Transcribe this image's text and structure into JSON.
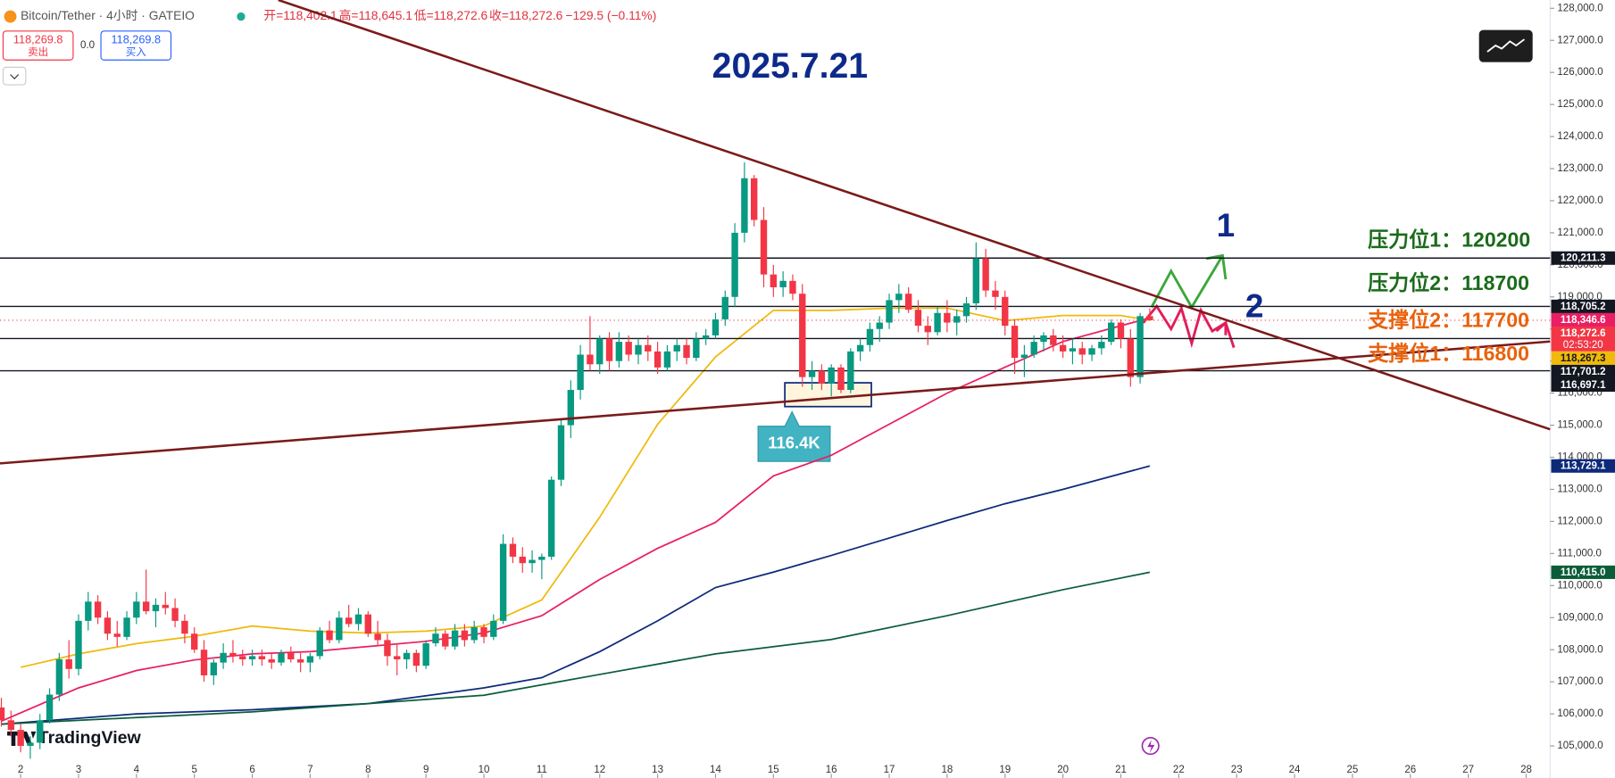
{
  "header": {
    "symbol": "Bitcoin/Tether · 4小时 · GATEIO",
    "open": "开=118,402.1",
    "high": "高=118,645.1",
    "low": "低=118,272.6",
    "close": "收=118,272.6",
    "change": "−129.5 (−0.11%)",
    "sell_price": "118,269.8",
    "sell": "卖出",
    "spread": "0.0",
    "buy_price": "118,269.8",
    "buy": "买入"
  },
  "brand": "TradingView",
  "chart_data": {
    "type": "candlestick",
    "title": "2025.7.21",
    "grid": false,
    "up_color": "#089981",
    "down_color": "#f23645",
    "xlim": [
      -0.14,
      160.48
    ],
    "ylim": [
      104000,
      128258
    ],
    "xticks": [
      {
        "value": 2,
        "label": "2"
      },
      {
        "value": 8,
        "label": "3"
      },
      {
        "value": 14,
        "label": "4"
      },
      {
        "value": 20,
        "label": "5"
      },
      {
        "value": 26,
        "label": "6"
      },
      {
        "value": 32,
        "label": "7"
      },
      {
        "value": 38,
        "label": "8"
      },
      {
        "value": 44,
        "label": "9"
      },
      {
        "value": 50,
        "label": "10"
      },
      {
        "value": 56,
        "label": "11"
      },
      {
        "value": 62,
        "label": "12"
      },
      {
        "value": 68,
        "label": "13"
      },
      {
        "value": 74,
        "label": "14"
      },
      {
        "value": 80,
        "label": "15"
      },
      {
        "value": 86,
        "label": "16"
      },
      {
        "value": 92,
        "label": "17"
      },
      {
        "value": 98,
        "label": "18"
      },
      {
        "value": 104,
        "label": "19"
      },
      {
        "value": 110,
        "label": "20"
      },
      {
        "value": 116,
        "label": "21"
      },
      {
        "value": 122,
        "label": "22"
      },
      {
        "value": 128,
        "label": "23"
      },
      {
        "value": 134,
        "label": "24"
      },
      {
        "value": 140,
        "label": "25"
      },
      {
        "value": 146,
        "label": "26"
      },
      {
        "value": 152,
        "label": "27"
      },
      {
        "value": 158,
        "label": "28"
      }
    ],
    "yticks": [
      {
        "value": 128000,
        "label": "128,000.0"
      },
      {
        "value": 127000,
        "label": "127,000.0"
      },
      {
        "value": 126000,
        "label": "126,000.0"
      },
      {
        "value": 125000,
        "label": "125,000.0"
      },
      {
        "value": 124000,
        "label": "124,000.0"
      },
      {
        "value": 123000,
        "label": "123,000.0"
      },
      {
        "value": 122000,
        "label": "122,000.0"
      },
      {
        "value": 121000,
        "label": "121,000.0"
      },
      {
        "value": 120000,
        "label": "120,000.0"
      },
      {
        "value": 119000,
        "label": "119,000.0"
      },
      {
        "value": 118000,
        "label": "118,000.0"
      },
      {
        "value": 117000,
        "label": "117,000.0"
      },
      {
        "value": 116000,
        "label": "116,000.0"
      },
      {
        "value": 115000,
        "label": "115,000.0"
      },
      {
        "value": 114000,
        "label": "114,000.0"
      },
      {
        "value": 113000,
        "label": "113,000.0"
      },
      {
        "value": 112000,
        "label": "112,000.0"
      },
      {
        "value": 111000,
        "label": "111,000.0"
      },
      {
        "value": 110000,
        "label": "110,000.0"
      },
      {
        "value": 109000,
        "label": "109,000.0"
      },
      {
        "value": 108000,
        "label": "108,000.0"
      },
      {
        "value": 107000,
        "label": "107,000.0"
      },
      {
        "value": 106000,
        "label": "106,000.0"
      },
      {
        "value": 105000,
        "label": "105,000.0"
      }
    ],
    "ohlc": [
      [
        106200,
        106500,
        105600,
        105800
      ],
      [
        105800,
        106100,
        105300,
        105500
      ],
      [
        105500,
        105700,
        104800,
        105000
      ],
      [
        105000,
        105300,
        104600,
        105100
      ],
      [
        105100,
        106000,
        104900,
        105800
      ],
      [
        105800,
        106800,
        105700,
        106600
      ],
      [
        106600,
        107900,
        106400,
        107700
      ],
      [
        107700,
        108300,
        107100,
        107400
      ],
      [
        107400,
        109100,
        107200,
        108900
      ],
      [
        108900,
        109800,
        108600,
        109500
      ],
      [
        109500,
        109700,
        108800,
        109000
      ],
      [
        109000,
        109200,
        108300,
        108500
      ],
      [
        108500,
        108900,
        108100,
        108400
      ],
      [
        108400,
        109200,
        108300,
        109000
      ],
      [
        109000,
        109800,
        108800,
        109500
      ],
      [
        109500,
        110500,
        109100,
        109200
      ],
      [
        109200,
        109600,
        108700,
        109400
      ],
      [
        109400,
        109800,
        109100,
        109300
      ],
      [
        109300,
        109600,
        108700,
        108900
      ],
      [
        108900,
        109100,
        108200,
        108500
      ],
      [
        108500,
        108700,
        107900,
        108000
      ],
      [
        108000,
        108300,
        107000,
        107200
      ],
      [
        107200,
        107700,
        106900,
        107600
      ],
      [
        107600,
        108200,
        107400,
        107900
      ],
      [
        107900,
        108300,
        107600,
        107800
      ],
      [
        107800,
        108000,
        107500,
        107700
      ],
      [
        107700,
        108000,
        107500,
        107800
      ],
      [
        107800,
        108000,
        107500,
        107700
      ],
      [
        107700,
        107900,
        107400,
        107600
      ],
      [
        107600,
        108000,
        107500,
        107900
      ],
      [
        107900,
        108100,
        107600,
        107700
      ],
      [
        107700,
        107900,
        107300,
        107600
      ],
      [
        107600,
        107900,
        107300,
        107800
      ],
      [
        107800,
        108700,
        107700,
        108600
      ],
      [
        108600,
        108900,
        108200,
        108300
      ],
      [
        108300,
        109200,
        108200,
        109000
      ],
      [
        109000,
        109400,
        108700,
        108800
      ],
      [
        108800,
        109300,
        108600,
        109100
      ],
      [
        109100,
        109200,
        108400,
        108500
      ],
      [
        108500,
        108900,
        108100,
        108300
      ],
      [
        108300,
        108500,
        107500,
        107800
      ],
      [
        107800,
        108200,
        107200,
        107700
      ],
      [
        107700,
        108000,
        107400,
        107900
      ],
      [
        107900,
        108000,
        107300,
        107500
      ],
      [
        107500,
        108300,
        107400,
        108200
      ],
      [
        108200,
        108700,
        108100,
        108500
      ],
      [
        108500,
        108600,
        108000,
        108100
      ],
      [
        108100,
        108800,
        108000,
        108600
      ],
      [
        108600,
        108800,
        108100,
        108300
      ],
      [
        108300,
        108900,
        108200,
        108700
      ],
      [
        108700,
        108800,
        108200,
        108400
      ],
      [
        108400,
        109100,
        108300,
        108900
      ],
      [
        108900,
        111600,
        108800,
        111300
      ],
      [
        111300,
        111500,
        110700,
        110900
      ],
      [
        110900,
        111200,
        110400,
        110700
      ],
      [
        110700,
        111100,
        110400,
        110800
      ],
      [
        110800,
        111000,
        110200,
        110900
      ],
      [
        110900,
        113400,
        110800,
        113300
      ],
      [
        113300,
        115200,
        113100,
        115000
      ],
      [
        115000,
        116400,
        114600,
        116100
      ],
      [
        116100,
        117500,
        115800,
        117200
      ],
      [
        117200,
        118400,
        116700,
        116900
      ],
      [
        116900,
        117800,
        116600,
        117700
      ],
      [
        117700,
        117900,
        116700,
        117000
      ],
      [
        117000,
        117900,
        116800,
        117600
      ],
      [
        117600,
        117800,
        117000,
        117200
      ],
      [
        117200,
        117700,
        116900,
        117500
      ],
      [
        117500,
        117800,
        117000,
        117300
      ],
      [
        117300,
        117600,
        116600,
        116800
      ],
      [
        116800,
        117500,
        116700,
        117300
      ],
      [
        117300,
        117700,
        117000,
        117500
      ],
      [
        117500,
        117700,
        116900,
        117100
      ],
      [
        117100,
        117900,
        117000,
        117700
      ],
      [
        117700,
        118000,
        117500,
        117800
      ],
      [
        117800,
        118500,
        117700,
        118300
      ],
      [
        118300,
        119200,
        118100,
        119000
      ],
      [
        119000,
        121300,
        118700,
        121000
      ],
      [
        121000,
        123200,
        120700,
        122700
      ],
      [
        122700,
        122800,
        121200,
        121400
      ],
      [
        121400,
        121800,
        119300,
        119700
      ],
      [
        119700,
        120000,
        119000,
        119300
      ],
      [
        119300,
        119800,
        119000,
        119500
      ],
      [
        119500,
        119700,
        118900,
        119100
      ],
      [
        119100,
        119400,
        116200,
        116500
      ],
      [
        116500,
        117000,
        116100,
        116700
      ],
      [
        116700,
        116900,
        116100,
        116300
      ],
      [
        116300,
        116900,
        115900,
        116800
      ],
      [
        116800,
        116900,
        116000,
        116100
      ],
      [
        116100,
        117400,
        116000,
        117300
      ],
      [
        117300,
        117700,
        117000,
        117500
      ],
      [
        117500,
        118200,
        117300,
        118000
      ],
      [
        118000,
        118400,
        117600,
        118200
      ],
      [
        118200,
        119100,
        118000,
        118900
      ],
      [
        118900,
        119400,
        118500,
        119100
      ],
      [
        119100,
        119300,
        118500,
        118600
      ],
      [
        118600,
        118900,
        117900,
        118100
      ],
      [
        118100,
        118400,
        117500,
        117900
      ],
      [
        117900,
        118700,
        117800,
        118500
      ],
      [
        118500,
        118900,
        117900,
        118200
      ],
      [
        118200,
        118600,
        117800,
        118400
      ],
      [
        118400,
        119000,
        118200,
        118800
      ],
      [
        118800,
        120700,
        118600,
        120200
      ],
      [
        120200,
        120500,
        119000,
        119200
      ],
      [
        119200,
        119500,
        118600,
        119000
      ],
      [
        119000,
        119200,
        117800,
        118100
      ],
      [
        118100,
        118300,
        116600,
        117100
      ],
      [
        117100,
        117500,
        116500,
        117200
      ],
      [
        117200,
        117800,
        117100,
        117600
      ],
      [
        117600,
        117900,
        117300,
        117800
      ],
      [
        117800,
        118000,
        117300,
        117500
      ],
      [
        117500,
        117800,
        117100,
        117300
      ],
      [
        117300,
        117700,
        116900,
        117400
      ],
      [
        117400,
        117600,
        116900,
        117200
      ],
      [
        117200,
        117500,
        117000,
        117400
      ],
      [
        117400,
        117800,
        117200,
        117600
      ],
      [
        117600,
        118300,
        117500,
        118200
      ],
      [
        118200,
        118300,
        117400,
        117700
      ],
      [
        117700,
        118000,
        116200,
        116500
      ],
      [
        116500,
        118500,
        116300,
        118402.1
      ],
      [
        118402.1,
        118645.1,
        118272.6,
        118272.6
      ]
    ],
    "ma": [
      {
        "color": "#f0b90b",
        "x": [
          2,
          8,
          14,
          20,
          26,
          32,
          38,
          44,
          50,
          56,
          62,
          68,
          74,
          80,
          86,
          92,
          98,
          104,
          110,
          116,
          119
        ],
        "values": [
          107450,
          107870,
          108190,
          108420,
          108740,
          108580,
          108520,
          108580,
          108740,
          109550,
          112130,
          115030,
          117130,
          118580,
          118580,
          118650,
          118650,
          118260,
          118420,
          118420,
          118267.3
        ],
        "last_label": "118,267.3",
        "label_text": "#131722"
      },
      {
        "color": "#e91e63",
        "x": [
          0,
          8,
          14,
          20,
          26,
          32,
          38,
          44,
          50,
          56,
          62,
          68,
          74,
          80,
          86,
          92,
          98,
          104,
          110,
          116,
          119
        ],
        "values": [
          105770,
          106810,
          107350,
          107680,
          107870,
          107940,
          108100,
          108260,
          108520,
          109060,
          110190,
          111160,
          111970,
          113420,
          114060,
          115030,
          116000,
          116810,
          117610,
          118100,
          118346.6
        ],
        "last_label": "118,346.6",
        "label_text": "#ffffff"
      },
      {
        "color": "#0d2a7a",
        "x": [
          0,
          14,
          26,
          38,
          50,
          56,
          62,
          68,
          74,
          80,
          86,
          92,
          98,
          104,
          110,
          119
        ],
        "values": [
          105680,
          106000,
          106130,
          106320,
          106810,
          107130,
          107940,
          108900,
          109940,
          110420,
          110940,
          111480,
          112030,
          112550,
          113000,
          113729.1
        ],
        "last_label": "113,729.1",
        "label_text": "#ffffff"
      },
      {
        "color": "#0b5d3a",
        "x": [
          0,
          26,
          50,
          62,
          74,
          86,
          98,
          110,
          119
        ],
        "values": [
          105680,
          106060,
          106580,
          107230,
          107870,
          108320,
          109060,
          109870,
          110415.0
        ],
        "last_label": "110,415.0",
        "label_text": "#ffffff"
      }
    ],
    "trendlines": [
      {
        "color": "#7b1a1a",
        "x": [
          28.7,
          160.48
        ],
        "values": [
          128258,
          114870
        ]
      },
      {
        "color": "#7b1a1a",
        "x": [
          -0.14,
          160.48
        ],
        "values": [
          113810,
          117610
        ]
      }
    ],
    "hlines": [
      {
        "value": 120211.3,
        "label": "120,211.3"
      },
      {
        "value": 118705.2,
        "label": "118,705.2"
      },
      {
        "value": 117701.2,
        "label": "117,701.2"
      },
      {
        "value": 116697.1,
        "label": "116,697.1"
      }
    ],
    "last_price": {
      "value": 118272.6,
      "label": "118,272.6",
      "countdown": "02:53:20",
      "color": "#f23645"
    },
    "annotations": [
      {
        "text": "压力位1：120200",
        "color": "#1b6b1b"
      },
      {
        "text": "压力位2：118700",
        "color": "#1b6b1b"
      },
      {
        "text": "支撑位2：117700",
        "color": "#e8620c"
      },
      {
        "text": "支撑位1：116800",
        "color": "#e8620c"
      },
      {
        "text": "1",
        "color": "#0d2a8a"
      },
      {
        "text": "2",
        "color": "#0d2a8a"
      },
      {
        "text": "116.4K",
        "color": "#ffffff"
      }
    ]
  }
}
